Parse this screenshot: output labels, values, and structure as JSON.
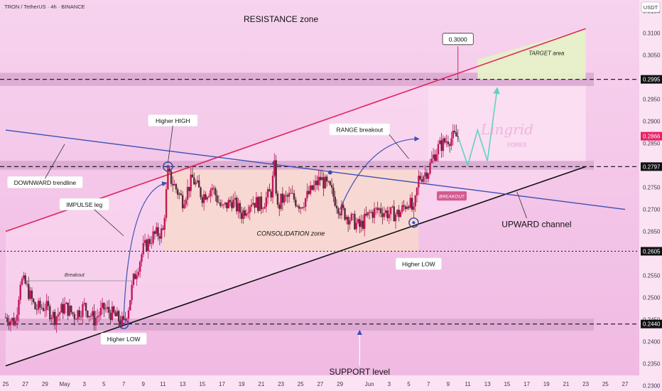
{
  "header": {
    "symbol_line": "TRON / TetherUS · 4h · BINANCE",
    "currency": "USDT"
  },
  "colors": {
    "background": "#f3c9ea",
    "bull_candle": "#c2185b",
    "bear_candle": "#5a2a3a",
    "resistance_line": "#e0245e",
    "support_line": "#111111",
    "trendline": "#3b4fb3",
    "zone_band": "#d9a6d0",
    "consolidation_fill": "#f8d9c8",
    "target_fill": "#e6f0c8",
    "current_price_tag": "#e91e63",
    "projection": "#5fd3c2"
  },
  "chart_data": {
    "type": "candlestick",
    "symbol": "TRON / TetherUS",
    "interval": "4h",
    "exchange": "BINANCE",
    "y_axis": {
      "unit": "USDT",
      "ylim": [
        0.2288,
        0.3175
      ],
      "ticks": [
        "0.3150",
        "0.3100",
        "0.3050",
        "0.2950",
        "0.2900",
        "0.2850",
        "0.2750",
        "0.2700",
        "0.2650",
        "0.2550",
        "0.2500",
        "0.2450",
        "0.2400",
        "0.2350",
        "0.2300"
      ],
      "tick_values": [
        0.315,
        0.31,
        0.305,
        0.295,
        0.29,
        0.285,
        0.275,
        0.27,
        0.265,
        0.255,
        0.25,
        0.245,
        0.24,
        0.235,
        0.23
      ]
    },
    "x_axis": {
      "date_range": [
        "2025-04-25",
        "2025-06-27"
      ],
      "ticks": [
        {
          "date": "2025-04-25",
          "label": "25"
        },
        {
          "date": "2025-04-27",
          "label": "27"
        },
        {
          "date": "2025-04-29",
          "label": "29"
        },
        {
          "date": "2025-05-01",
          "label": "May"
        },
        {
          "date": "2025-05-03",
          "label": "3"
        },
        {
          "date": "2025-05-05",
          "label": "5"
        },
        {
          "date": "2025-05-07",
          "label": "7"
        },
        {
          "date": "2025-05-09",
          "label": "9"
        },
        {
          "date": "2025-05-11",
          "label": "11"
        },
        {
          "date": "2025-05-13",
          "label": "13"
        },
        {
          "date": "2025-05-15",
          "label": "15"
        },
        {
          "date": "2025-05-17",
          "label": "17"
        },
        {
          "date": "2025-05-19",
          "label": "19"
        },
        {
          "date": "2025-05-21",
          "label": "21"
        },
        {
          "date": "2025-05-23",
          "label": "23"
        },
        {
          "date": "2025-05-25",
          "label": "25"
        },
        {
          "date": "2025-05-27",
          "label": "27"
        },
        {
          "date": "2025-05-29",
          "label": "29"
        },
        {
          "date": "2025-06-01",
          "label": "Jun"
        },
        {
          "date": "2025-06-03",
          "label": "3"
        },
        {
          "date": "2025-06-05",
          "label": "5"
        },
        {
          "date": "2025-06-07",
          "label": "7"
        },
        {
          "date": "2025-06-09",
          "label": "9"
        },
        {
          "date": "2025-06-11",
          "label": "11"
        },
        {
          "date": "2025-06-13",
          "label": "13"
        },
        {
          "date": "2025-06-15",
          "label": "15"
        },
        {
          "date": "2025-06-17",
          "label": "17"
        },
        {
          "date": "2025-06-19",
          "label": "19"
        },
        {
          "date": "2025-06-21",
          "label": "21"
        },
        {
          "date": "2025-06-23",
          "label": "23"
        },
        {
          "date": "2025-06-25",
          "label": "25"
        },
        {
          "date": "2025-06-27",
          "label": "27"
        }
      ]
    },
    "last_price": {
      "value": 0.2866,
      "label": "0.2866"
    },
    "price_path": [
      [
        "2025-04-25",
        0.2455
      ],
      [
        "2025-04-26",
        0.2445
      ],
      [
        "2025-04-26T12:00",
        0.254
      ],
      [
        "2025-04-27",
        0.253
      ],
      [
        "2025-04-28",
        0.2475
      ],
      [
        "2025-04-29",
        0.248
      ],
      [
        "2025-04-30",
        0.2455
      ],
      [
        "2025-05-01",
        0.248
      ],
      [
        "2025-05-02",
        0.246
      ],
      [
        "2025-05-03",
        0.248
      ],
      [
        "2025-05-04",
        0.245
      ],
      [
        "2025-05-05",
        0.2475
      ],
      [
        "2025-05-06",
        0.246
      ],
      [
        "2025-05-07",
        0.244
      ],
      [
        "2025-05-07T12:00",
        0.248
      ],
      [
        "2025-05-08",
        0.254
      ],
      [
        "2025-05-09",
        0.261
      ],
      [
        "2025-05-10",
        0.264
      ],
      [
        "2025-05-11",
        0.265
      ],
      [
        "2025-05-11T12:00",
        0.278
      ],
      [
        "2025-05-12",
        0.276
      ],
      [
        "2025-05-13",
        0.272
      ],
      [
        "2025-05-14",
        0.277
      ],
      [
        "2025-05-15",
        0.273
      ],
      [
        "2025-05-16",
        0.275
      ],
      [
        "2025-05-17",
        0.27
      ],
      [
        "2025-05-18",
        0.272
      ],
      [
        "2025-05-19",
        0.269
      ],
      [
        "2025-05-20",
        0.272
      ],
      [
        "2025-05-21",
        0.271
      ],
      [
        "2025-05-22",
        0.274
      ],
      [
        "2025-05-22T08:00",
        0.2795
      ],
      [
        "2025-05-22T16:00",
        0.27
      ],
      [
        "2025-05-23",
        0.272
      ],
      [
        "2025-05-24",
        0.273
      ],
      [
        "2025-05-25",
        0.271
      ],
      [
        "2025-05-26",
        0.274
      ],
      [
        "2025-05-27",
        0.277
      ],
      [
        "2025-05-28",
        0.2745
      ],
      [
        "2025-05-29",
        0.27
      ],
      [
        "2025-05-30",
        0.268
      ],
      [
        "2025-05-31",
        0.266
      ],
      [
        "2025-06-01",
        0.269
      ],
      [
        "2025-06-02",
        0.27
      ],
      [
        "2025-06-03",
        0.269
      ],
      [
        "2025-06-04",
        0.269
      ],
      [
        "2025-06-05",
        0.272
      ],
      [
        "2025-06-05T12:00",
        0.269
      ],
      [
        "2025-06-06",
        0.277
      ],
      [
        "2025-06-07",
        0.279
      ],
      [
        "2025-06-07T12:00",
        0.282
      ],
      [
        "2025-06-08",
        0.284
      ],
      [
        "2025-06-09",
        0.286
      ],
      [
        "2025-06-10",
        0.2866
      ]
    ],
    "projection_path": [
      [
        "2025-06-10",
        0.2866
      ],
      [
        "2025-06-11",
        0.28
      ],
      [
        "2025-06-12",
        0.288
      ],
      [
        "2025-06-13",
        0.281
      ],
      [
        "2025-06-14",
        0.2975
      ]
    ],
    "levels": [
      {
        "name": "resistance",
        "value": 0.2995,
        "label": "0.2995"
      },
      {
        "name": "breakout-level",
        "value": 0.2797,
        "label": "0.2797"
      },
      {
        "name": "consolidation-low",
        "value": 0.2605,
        "label": "0.2605"
      },
      {
        "name": "support",
        "value": 0.244,
        "label": "0.2440"
      }
    ],
    "trendlines": {
      "resistance_channel": [
        [
          "2025-04-25",
          0.265
        ],
        [
          "2025-06-23",
          0.311
        ]
      ],
      "support_channel": [
        [
          "2025-04-25",
          0.2345
        ],
        [
          "2025-06-23",
          0.2797
        ]
      ],
      "downward_trend": [
        [
          "2025-04-25",
          0.288
        ],
        [
          "2025-06-27",
          0.27
        ]
      ]
    },
    "zones": {
      "resistance_band": [
        0.298,
        0.301
      ],
      "support_band": [
        0.2425,
        0.2452
      ],
      "breakout_band": [
        0.279,
        0.281
      ],
      "consolidation": {
        "from": "2025-05-11",
        "to": "2025-06-06",
        "low": 0.2605,
        "high": 0.279
      },
      "target": {
        "from": "2025-06-12",
        "to": "2025-06-23",
        "low": 0.2995,
        "high": 0.31
      }
    },
    "annotations": [
      {
        "id": "resistance-zone",
        "text": "RESISTANCE zone",
        "date": "2025-05-23",
        "price": 0.3125
      },
      {
        "id": "target-area",
        "text": "TARGET area",
        "date": "2025-06-19",
        "price": 0.305
      },
      {
        "id": "price-0-3000",
        "text": "0.3000",
        "date": "2025-06-10",
        "price": 0.3085
      },
      {
        "id": "higher-high",
        "text": "Higher HIGH",
        "date": "2025-05-12",
        "price": 0.29
      },
      {
        "id": "range-breakout",
        "text": "RANGE breakout",
        "date": "2025-05-31",
        "price": 0.288
      },
      {
        "id": "downward-trendline",
        "text": "DOWNWARD trendline",
        "date": "2025-04-29",
        "price": 0.276
      },
      {
        "id": "impulse-leg",
        "text": "IMPULSE leg",
        "date": "2025-05-03",
        "price": 0.271
      },
      {
        "id": "breakout-small",
        "text": "Breakout",
        "date": "2025-05-02",
        "price": 0.2548
      },
      {
        "id": "consolidation-zone",
        "text": "CONSOLIDATION zone",
        "date": "2025-05-24",
        "price": 0.264
      },
      {
        "id": "upward-channel",
        "text": "UPWARD channel",
        "date": "2025-06-18",
        "price": 0.266
      },
      {
        "id": "breakout-badge",
        "text": "BREAKOUT",
        "date": "2025-06-08",
        "price": 0.2728
      },
      {
        "id": "higher-low-2",
        "text": "Higher LOW",
        "date": "2025-06-06",
        "price": 0.2575
      },
      {
        "id": "higher-low-1",
        "text": "Higher LOW",
        "date": "2025-05-07",
        "price": 0.2405
      },
      {
        "id": "support-level",
        "text": "SUPPORT level",
        "date": "2025-05-31",
        "price": 0.2325
      }
    ],
    "watermark": {
      "line1": "Lingrid",
      "line2": "FOREX"
    }
  }
}
